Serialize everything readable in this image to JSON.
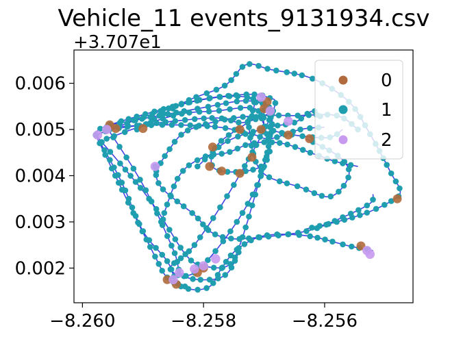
{
  "chart_data": {
    "type": "scatter",
    "title": "Vehicle_11 events_9131934.csv",
    "y_offset_label": "+3.707e1",
    "xlabel": "",
    "ylabel": "",
    "xlim": [
      -8.26014,
      -8.25454
    ],
    "ylim": [
      0.00125,
      0.00672
    ],
    "x_ticks": [
      {
        "value": -8.26,
        "label": "−8.260"
      },
      {
        "value": -8.258,
        "label": "−8.258"
      },
      {
        "value": -8.256,
        "label": "−8.256"
      }
    ],
    "y_ticks": [
      {
        "value": 0.002,
        "label": "0.002"
      },
      {
        "value": 0.003,
        "label": "0.003"
      },
      {
        "value": 0.004,
        "label": "0.004"
      },
      {
        "value": 0.005,
        "label": "0.005"
      },
      {
        "value": 0.006,
        "label": "0.006"
      }
    ],
    "legend": {
      "position": "top-right",
      "entries": [
        "0",
        "1",
        "2"
      ]
    },
    "grid": false,
    "series": [
      {
        "name": "0",
        "color": "#b06a3b",
        "size": 6.5
      },
      {
        "name": "1",
        "color": "#1f9eb0",
        "size": 4.3
      },
      {
        "name": "2",
        "color": "#c79af0",
        "size": 6.8
      }
    ],
    "route_color": "#2a2fe0",
    "routes": [
      [
        [
          -8.25978,
          0.00488
        ],
        [
          -8.25955,
          0.0051
        ],
        [
          -8.258,
          0.00565
        ],
        [
          -8.2572,
          0.00565
        ],
        [
          -8.25725,
          0.00505
        ],
        [
          -8.25705,
          0.0041
        ],
        [
          -8.2564,
          0.00375
        ],
        [
          -8.2559,
          0.00355
        ],
        [
          -8.2556,
          0.004
        ],
        [
          -8.25575,
          0.0044
        ],
        [
          -8.2563,
          0.0048
        ]
      ],
      [
        [
          -8.25955,
          0.0051
        ],
        [
          -8.2581,
          0.00545
        ],
        [
          -8.2573,
          0.00562
        ],
        [
          -8.257,
          0.00542
        ],
        [
          -8.25775,
          0.0047
        ],
        [
          -8.25785,
          0.0042
        ],
        [
          -8.2575,
          0.00408
        ],
        [
          -8.25705,
          0.0042
        ],
        [
          -8.2569,
          0.0046
        ],
        [
          -8.257,
          0.0051
        ],
        [
          -8.257,
          0.0054
        ]
      ],
      [
        [
          -8.25978,
          0.00488
        ],
        [
          -8.25835,
          0.00555
        ],
        [
          -8.2574,
          0.00575
        ],
        [
          -8.25695,
          0.0057
        ],
        [
          -8.25685,
          0.0054
        ],
        [
          -8.2575,
          0.0038
        ],
        [
          -8.25815,
          0.0025
        ],
        [
          -8.25855,
          0.002
        ],
        [
          -8.25815,
          0.0019
        ],
        [
          -8.25745,
          0.003
        ],
        [
          -8.257,
          0.0042
        ],
        [
          -8.2569,
          0.0054
        ],
        [
          -8.2572,
          0.0056
        ]
      ],
      [
        [
          -8.25978,
          0.00488
        ],
        [
          -8.2589,
          0.0035
        ],
        [
          -8.2583,
          0.0023
        ],
        [
          -8.258,
          0.00205
        ],
        [
          -8.2576,
          0.00205
        ],
        [
          -8.2574,
          0.0025
        ],
        [
          -8.2571,
          0.0038
        ],
        [
          -8.2569,
          0.0048
        ],
        [
          -8.2569,
          0.00545
        ],
        [
          -8.25725,
          0.0057
        ]
      ],
      [
        [
          -8.2596,
          0.00505
        ],
        [
          -8.259,
          0.0038
        ],
        [
          -8.2585,
          0.0024
        ],
        [
          -8.25835,
          0.00185
        ],
        [
          -8.2579,
          0.00175
        ],
        [
          -8.2576,
          0.0019
        ],
        [
          -8.2574,
          0.0024
        ]
      ],
      [
        [
          -8.25978,
          0.00488
        ],
        [
          -8.2592,
          0.0033
        ],
        [
          -8.2588,
          0.00225
        ],
        [
          -8.2586,
          0.0018
        ],
        [
          -8.25825,
          0.00155
        ],
        [
          -8.2579,
          0.0016
        ],
        [
          -8.2577,
          0.002
        ],
        [
          -8.25745,
          0.0024
        ],
        [
          -8.257,
          0.0027
        ],
        [
          -8.2563,
          0.0027
        ],
        [
          -8.2556,
          0.00248
        ],
        [
          -8.2552,
          0.00238
        ]
      ],
      [
        [
          -8.2596,
          0.00505
        ],
        [
          -8.2586,
          0.0051
        ],
        [
          -8.25775,
          0.00505
        ],
        [
          -8.2572,
          0.0049
        ],
        [
          -8.2569,
          0.0048
        ],
        [
          -8.2564,
          0.005
        ],
        [
          -8.256,
          0.00505
        ]
      ],
      [
        [
          -8.2596,
          0.0048
        ],
        [
          -8.2585,
          0.0053
        ],
        [
          -8.2578,
          0.0054
        ],
        [
          -8.25715,
          0.00545
        ],
        [
          -8.2569,
          0.005
        ],
        [
          -8.256,
          0.00482
        ],
        [
          -8.2557,
          0.005
        ]
      ],
      [
        [
          -8.2591,
          0.005
        ],
        [
          -8.2583,
          0.0056
        ],
        [
          -8.25765,
          0.00595
        ],
        [
          -8.2573,
          0.0064
        ],
        [
          -8.2569,
          0.0063
        ],
        [
          -8.2562,
          0.0061
        ],
        [
          -8.2556,
          0.0056
        ],
        [
          -8.25525,
          0.0049
        ],
        [
          -8.2549,
          0.00405
        ],
        [
          -8.25475,
          0.00365
        ],
        [
          -8.2549,
          0.00345
        ],
        [
          -8.2553,
          0.0032
        ],
        [
          -8.2558,
          0.003
        ],
        [
          -8.2563,
          0.00285
        ]
      ],
      [
        [
          -8.2588,
          0.0042
        ],
        [
          -8.2587,
          0.00375
        ],
        [
          -8.25815,
          0.00315
        ],
        [
          -8.2579,
          0.0028
        ],
        [
          -8.2576,
          0.00265
        ],
        [
          -8.2572,
          0.00265
        ],
        [
          -8.2563,
          0.0028
        ],
        [
          -8.2557,
          0.0031
        ],
        [
          -8.25525,
          0.0034
        ],
        [
          -8.2552,
          0.0036
        ]
      ],
      [
        [
          -8.25878,
          0.0041
        ],
        [
          -8.2586,
          0.0045
        ],
        [
          -8.2583,
          0.00495
        ],
        [
          -8.2577,
          0.0052
        ],
        [
          -8.2571,
          0.0053
        ],
        [
          -8.2565,
          0.0053
        ],
        [
          -8.2558,
          0.0053
        ],
        [
          -8.25545,
          0.005
        ]
      ],
      [
        [
          -8.2587,
          0.003
        ],
        [
          -8.2584,
          0.004
        ],
        [
          -8.258,
          0.0044
        ],
        [
          -8.2576,
          0.0045
        ],
        [
          -8.2572,
          0.0047
        ],
        [
          -8.2567,
          0.0047
        ],
        [
          -8.2562,
          0.00448
        ],
        [
          -8.2558,
          0.0043
        ],
        [
          -8.25545,
          0.0042
        ]
      ],
      [
        [
          -8.2581,
          0.0042
        ],
        [
          -8.2576,
          0.00475
        ],
        [
          -8.2569,
          0.00505
        ],
        [
          -8.2565,
          0.00515
        ],
        [
          -8.2562,
          0.0054
        ],
        [
          -8.25605,
          0.00525
        ]
      ],
      [
        [
          -8.2597,
          0.0047
        ],
        [
          -8.25935,
          0.00385
        ],
        [
          -8.259,
          0.0028
        ],
        [
          -8.2586,
          0.00215
        ],
        [
          -8.25845,
          0.0017
        ],
        [
          -8.2583,
          0.0016
        ]
      ],
      [
        [
          -8.25955,
          0.005
        ],
        [
          -8.2587,
          0.00515
        ],
        [
          -8.2578,
          0.00525
        ],
        [
          -8.25735,
          0.00515
        ],
        [
          -8.2569,
          0.00535
        ]
      ]
    ],
    "highlights_0": [
      [
        -8.25785,
        0.00462
      ],
      [
        -8.2579,
        0.0042
      ],
      [
        -8.2577,
        0.0041
      ],
      [
        -8.2574,
        0.00405
      ],
      [
        -8.2572,
        0.0044
      ],
      [
        -8.25705,
        0.005
      ],
      [
        -8.257,
        0.00545
      ],
      [
        -8.25695,
        0.0056
      ],
      [
        -8.2566,
        0.00488
      ],
      [
        -8.25625,
        0.0048
      ],
      [
        -8.2586,
        0.00175
      ],
      [
        -8.25845,
        0.00165
      ],
      [
        -8.2581,
        0.0019
      ],
      [
        -8.258,
        0.002
      ],
      [
        -8.25955,
        0.0051
      ],
      [
        -8.25945,
        0.00502
      ],
      [
        -8.2548,
        0.0035
      ],
      [
        -8.2554,
        0.00248
      ],
      [
        -8.259,
        0.00502
      ],
      [
        -8.2574,
        0.005
      ]
    ],
    "highlights_2": [
      [
        -8.25975,
        0.00488
      ],
      [
        -8.2596,
        0.005
      ],
      [
        -8.2569,
        0.0054
      ],
      [
        -8.2566,
        0.00518
      ],
      [
        -8.25705,
        0.0057
      ],
      [
        -8.2553,
        0.00238
      ],
      [
        -8.25525,
        0.0023
      ],
      [
        -8.25815,
        0.00198
      ],
      [
        -8.258,
        0.00205
      ],
      [
        -8.2588,
        0.0042
      ],
      [
        -8.2585,
        0.00175
      ],
      [
        -8.2578,
        0.0022
      ],
      [
        -8.2584,
        0.0019
      ]
    ]
  }
}
